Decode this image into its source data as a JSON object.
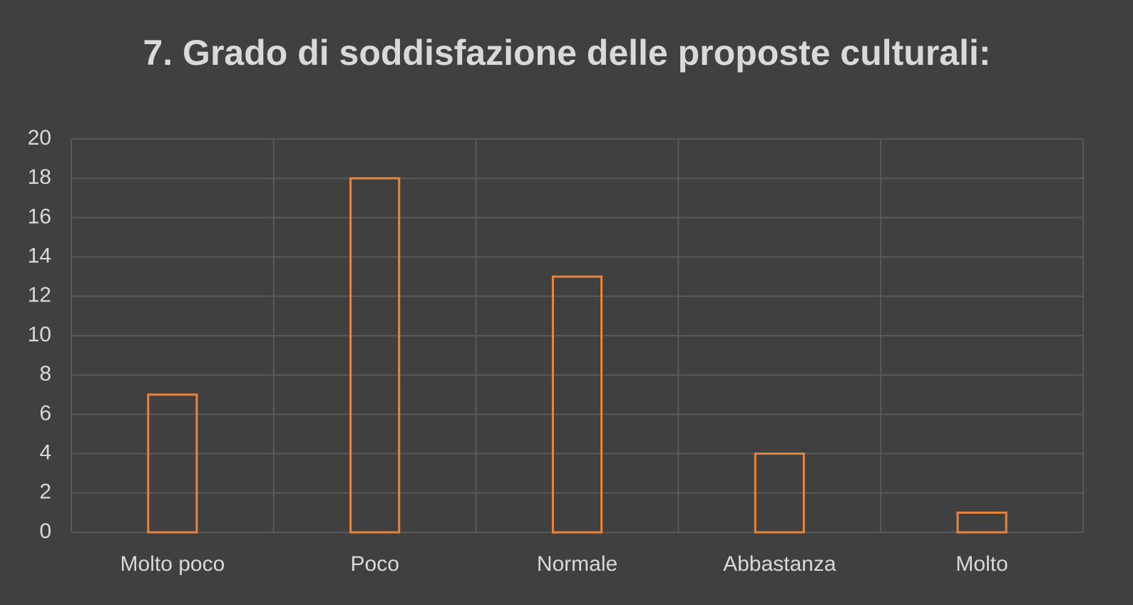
{
  "chart_data": {
    "type": "bar",
    "title": "7. Grado di soddisfazione delle proposte culturali:",
    "categories": [
      "Molto poco",
      "Poco",
      "Normale",
      "Abbastanza",
      "Molto"
    ],
    "values": [
      7,
      18,
      13,
      4,
      1
    ],
    "color": "#e8853d",
    "ylim": [
      0,
      20
    ],
    "yticks": [
      0,
      2,
      4,
      6,
      8,
      10,
      12,
      14,
      16,
      18,
      20
    ],
    "grid": true
  }
}
